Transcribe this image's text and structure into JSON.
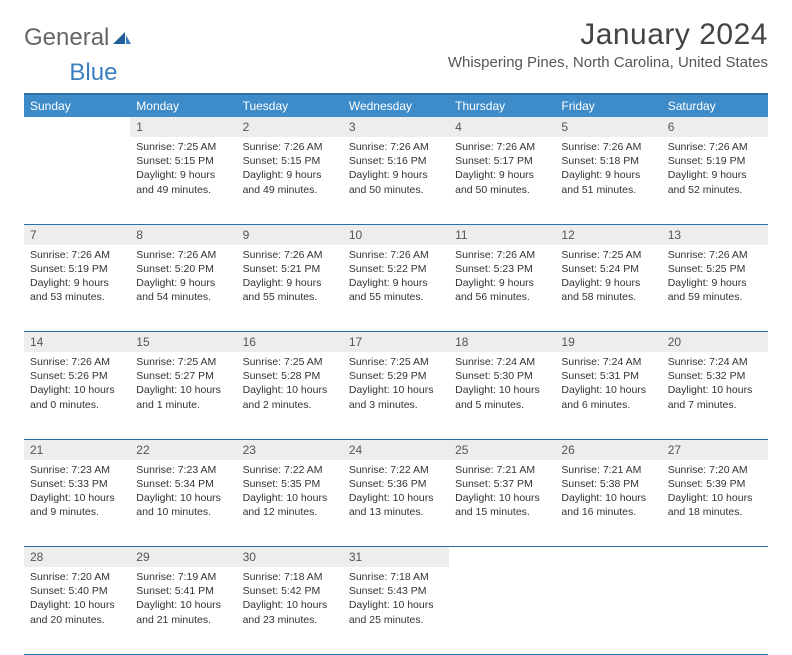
{
  "logo": {
    "text1": "General",
    "text2": "Blue"
  },
  "title": "January 2024",
  "subtitle": "Whispering Pines, North Carolina, United States",
  "colors": {
    "header_bg": "#3d8bc8",
    "header_text": "#ffffff",
    "rule": "#2f6fa8",
    "daynum_bg": "#ededed",
    "logo_accent": "#3a7fbf"
  },
  "weekdays": [
    "Sunday",
    "Monday",
    "Tuesday",
    "Wednesday",
    "Thursday",
    "Friday",
    "Saturday"
  ],
  "weeks": [
    [
      {
        "n": "",
        "lines": []
      },
      {
        "n": "1",
        "lines": [
          "Sunrise: 7:25 AM",
          "Sunset: 5:15 PM",
          "Daylight: 9 hours",
          "and 49 minutes."
        ]
      },
      {
        "n": "2",
        "lines": [
          "Sunrise: 7:26 AM",
          "Sunset: 5:15 PM",
          "Daylight: 9 hours",
          "and 49 minutes."
        ]
      },
      {
        "n": "3",
        "lines": [
          "Sunrise: 7:26 AM",
          "Sunset: 5:16 PM",
          "Daylight: 9 hours",
          "and 50 minutes."
        ]
      },
      {
        "n": "4",
        "lines": [
          "Sunrise: 7:26 AM",
          "Sunset: 5:17 PM",
          "Daylight: 9 hours",
          "and 50 minutes."
        ]
      },
      {
        "n": "5",
        "lines": [
          "Sunrise: 7:26 AM",
          "Sunset: 5:18 PM",
          "Daylight: 9 hours",
          "and 51 minutes."
        ]
      },
      {
        "n": "6",
        "lines": [
          "Sunrise: 7:26 AM",
          "Sunset: 5:19 PM",
          "Daylight: 9 hours",
          "and 52 minutes."
        ]
      }
    ],
    [
      {
        "n": "7",
        "lines": [
          "Sunrise: 7:26 AM",
          "Sunset: 5:19 PM",
          "Daylight: 9 hours",
          "and 53 minutes."
        ]
      },
      {
        "n": "8",
        "lines": [
          "Sunrise: 7:26 AM",
          "Sunset: 5:20 PM",
          "Daylight: 9 hours",
          "and 54 minutes."
        ]
      },
      {
        "n": "9",
        "lines": [
          "Sunrise: 7:26 AM",
          "Sunset: 5:21 PM",
          "Daylight: 9 hours",
          "and 55 minutes."
        ]
      },
      {
        "n": "10",
        "lines": [
          "Sunrise: 7:26 AM",
          "Sunset: 5:22 PM",
          "Daylight: 9 hours",
          "and 55 minutes."
        ]
      },
      {
        "n": "11",
        "lines": [
          "Sunrise: 7:26 AM",
          "Sunset: 5:23 PM",
          "Daylight: 9 hours",
          "and 56 minutes."
        ]
      },
      {
        "n": "12",
        "lines": [
          "Sunrise: 7:25 AM",
          "Sunset: 5:24 PM",
          "Daylight: 9 hours",
          "and 58 minutes."
        ]
      },
      {
        "n": "13",
        "lines": [
          "Sunrise: 7:26 AM",
          "Sunset: 5:25 PM",
          "Daylight: 9 hours",
          "and 59 minutes."
        ]
      }
    ],
    [
      {
        "n": "14",
        "lines": [
          "Sunrise: 7:26 AM",
          "Sunset: 5:26 PM",
          "Daylight: 10 hours",
          "and 0 minutes."
        ]
      },
      {
        "n": "15",
        "lines": [
          "Sunrise: 7:25 AM",
          "Sunset: 5:27 PM",
          "Daylight: 10 hours",
          "and 1 minute."
        ]
      },
      {
        "n": "16",
        "lines": [
          "Sunrise: 7:25 AM",
          "Sunset: 5:28 PM",
          "Daylight: 10 hours",
          "and 2 minutes."
        ]
      },
      {
        "n": "17",
        "lines": [
          "Sunrise: 7:25 AM",
          "Sunset: 5:29 PM",
          "Daylight: 10 hours",
          "and 3 minutes."
        ]
      },
      {
        "n": "18",
        "lines": [
          "Sunrise: 7:24 AM",
          "Sunset: 5:30 PM",
          "Daylight: 10 hours",
          "and 5 minutes."
        ]
      },
      {
        "n": "19",
        "lines": [
          "Sunrise: 7:24 AM",
          "Sunset: 5:31 PM",
          "Daylight: 10 hours",
          "and 6 minutes."
        ]
      },
      {
        "n": "20",
        "lines": [
          "Sunrise: 7:24 AM",
          "Sunset: 5:32 PM",
          "Daylight: 10 hours",
          "and 7 minutes."
        ]
      }
    ],
    [
      {
        "n": "21",
        "lines": [
          "Sunrise: 7:23 AM",
          "Sunset: 5:33 PM",
          "Daylight: 10 hours",
          "and 9 minutes."
        ]
      },
      {
        "n": "22",
        "lines": [
          "Sunrise: 7:23 AM",
          "Sunset: 5:34 PM",
          "Daylight: 10 hours",
          "and 10 minutes."
        ]
      },
      {
        "n": "23",
        "lines": [
          "Sunrise: 7:22 AM",
          "Sunset: 5:35 PM",
          "Daylight: 10 hours",
          "and 12 minutes."
        ]
      },
      {
        "n": "24",
        "lines": [
          "Sunrise: 7:22 AM",
          "Sunset: 5:36 PM",
          "Daylight: 10 hours",
          "and 13 minutes."
        ]
      },
      {
        "n": "25",
        "lines": [
          "Sunrise: 7:21 AM",
          "Sunset: 5:37 PM",
          "Daylight: 10 hours",
          "and 15 minutes."
        ]
      },
      {
        "n": "26",
        "lines": [
          "Sunrise: 7:21 AM",
          "Sunset: 5:38 PM",
          "Daylight: 10 hours",
          "and 16 minutes."
        ]
      },
      {
        "n": "27",
        "lines": [
          "Sunrise: 7:20 AM",
          "Sunset: 5:39 PM",
          "Daylight: 10 hours",
          "and 18 minutes."
        ]
      }
    ],
    [
      {
        "n": "28",
        "lines": [
          "Sunrise: 7:20 AM",
          "Sunset: 5:40 PM",
          "Daylight: 10 hours",
          "and 20 minutes."
        ]
      },
      {
        "n": "29",
        "lines": [
          "Sunrise: 7:19 AM",
          "Sunset: 5:41 PM",
          "Daylight: 10 hours",
          "and 21 minutes."
        ]
      },
      {
        "n": "30",
        "lines": [
          "Sunrise: 7:18 AM",
          "Sunset: 5:42 PM",
          "Daylight: 10 hours",
          "and 23 minutes."
        ]
      },
      {
        "n": "31",
        "lines": [
          "Sunrise: 7:18 AM",
          "Sunset: 5:43 PM",
          "Daylight: 10 hours",
          "and 25 minutes."
        ]
      },
      {
        "n": "",
        "lines": []
      },
      {
        "n": "",
        "lines": []
      },
      {
        "n": "",
        "lines": []
      }
    ]
  ]
}
